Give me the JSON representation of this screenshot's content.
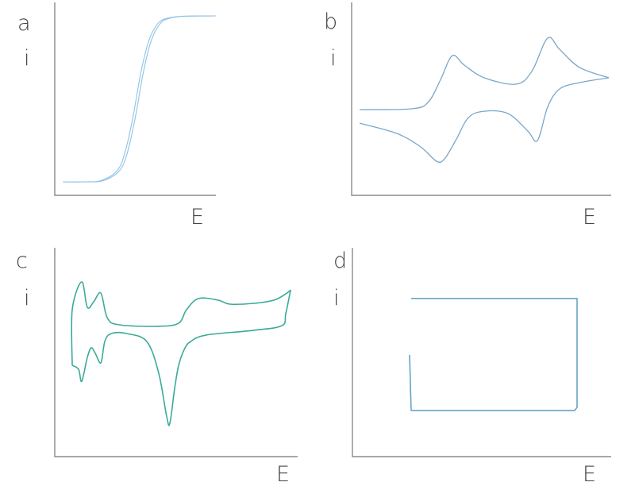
{
  "chart_data": [
    {
      "type": "line",
      "panel_label": "a",
      "xlabel": "E",
      "ylabel": "i",
      "xlim": [
        0,
        10
      ],
      "ylim": [
        0,
        10
      ],
      "grid": false,
      "color": "#8ec3e6",
      "smooth": true,
      "series": [
        {
          "values": [
            [
              0.5,
              0.7
            ],
            [
              2,
              0.7
            ],
            [
              3,
              0.76
            ],
            [
              4,
              1.26
            ],
            [
              4.5,
              2.2
            ],
            [
              5,
              4.05
            ],
            [
              5.5,
              6.4
            ],
            [
              6,
              8.05
            ],
            [
              6.5,
              8.85
            ],
            [
              7,
              9.15
            ],
            [
              8,
              9.28
            ],
            [
              10,
              9.3
            ]
          ]
        },
        {
          "values": [
            [
              10,
              9.3
            ],
            [
              7.85,
              9.28
            ],
            [
              6.85,
              9.15
            ],
            [
              6.35,
              8.85
            ],
            [
              5.85,
              8.05
            ],
            [
              5.35,
              6.4
            ],
            [
              4.85,
              4.05
            ],
            [
              4.35,
              2.2
            ],
            [
              3.85,
              1.26
            ],
            [
              2.85,
              0.76
            ],
            [
              1.85,
              0.7
            ],
            [
              0.5,
              0.7
            ]
          ]
        }
      ]
    },
    {
      "type": "line",
      "panel_label": "b",
      "xlabel": "E",
      "ylabel": "i",
      "xlim": [
        0,
        10
      ],
      "ylim": [
        0,
        10
      ],
      "grid": false,
      "color": "#7aa7c7",
      "smooth": true,
      "series": [
        {
          "values": [
            [
              0.31,
              4.44
            ],
            [
              2.35,
              4.49
            ],
            [
              2.97,
              4.86
            ],
            [
              3.43,
              6.01
            ],
            [
              3.88,
              7.24
            ],
            [
              4.34,
              6.75
            ],
            [
              5.11,
              6.09
            ],
            [
              6.33,
              5.76
            ],
            [
              6.94,
              6.42
            ],
            [
              7.55,
              8.15
            ],
            [
              8.01,
              7.57
            ],
            [
              8.78,
              6.63
            ],
            [
              9.91,
              6.09
            ]
          ]
        },
        {
          "values": [
            [
              9.91,
              6.09
            ],
            [
              8.78,
              5.84
            ],
            [
              8.01,
              5.51
            ],
            [
              7.55,
              4.57
            ],
            [
              7.16,
              2.84
            ],
            [
              6.79,
              3.33
            ],
            [
              6.02,
              4.24
            ],
            [
              5.11,
              4.36
            ],
            [
              4.5,
              4.03
            ],
            [
              4.04,
              2.92
            ],
            [
              3.58,
              1.89
            ],
            [
              3.27,
              1.77
            ],
            [
              2.66,
              2.51
            ],
            [
              1.74,
              3.21
            ],
            [
              0.31,
              3.74
            ]
          ]
        }
      ]
    },
    {
      "type": "line",
      "panel_label": "c",
      "xlabel": "E",
      "ylabel": "i",
      "xlim": [
        0,
        10
      ],
      "ylim": [
        0,
        10
      ],
      "grid": false,
      "color": "#3aaa9a",
      "smooth": true,
      "series": [
        {
          "values": [
            [
              0.72,
              4.37
            ],
            [
              0.72,
              7.03
            ],
            [
              1.11,
              8.37
            ],
            [
              1.34,
              7.15
            ],
            [
              1.6,
              7.41
            ],
            [
              1.9,
              7.83
            ],
            [
              2.16,
              6.65
            ],
            [
              2.65,
              6.31
            ],
            [
              4.28,
              6.24
            ],
            [
              5.1,
              6.39
            ],
            [
              5.42,
              7.03
            ],
            [
              5.92,
              7.57
            ],
            [
              6.73,
              7.49
            ],
            [
              7.22,
              7.3
            ],
            [
              8.2,
              7.34
            ],
            [
              9.02,
              7.49
            ],
            [
              9.51,
              7.79
            ],
            [
              9.71,
              7.98
            ]
          ]
        },
        {
          "values": [
            [
              9.71,
              7.98
            ],
            [
              9.51,
              6.84
            ],
            [
              9.35,
              6.27
            ],
            [
              8.2,
              6.05
            ],
            [
              6.24,
              5.82
            ],
            [
              5.59,
              5.51
            ],
            [
              5.33,
              5.13
            ],
            [
              5.1,
              4.37
            ],
            [
              4.93,
              3.23
            ],
            [
              4.74,
              1.6
            ],
            [
              4.61,
              1.9
            ],
            [
              4.28,
              3.99
            ],
            [
              3.79,
              5.51
            ],
            [
              2.97,
              5.89
            ],
            [
              2.32,
              5.89
            ],
            [
              2.06,
              5.51
            ],
            [
              1.9,
              4.49
            ],
            [
              1.67,
              4.94
            ],
            [
              1.5,
              5.21
            ],
            [
              1.34,
              4.75
            ],
            [
              1.11,
              3.61
            ],
            [
              0.98,
              4.18
            ],
            [
              0.72,
              4.37
            ]
          ]
        }
      ]
    },
    {
      "type": "line",
      "panel_label": "d",
      "xlabel": "E",
      "ylabel": "i",
      "xlim": [
        0,
        10
      ],
      "ylim": [
        0,
        10
      ],
      "grid": false,
      "color": "#5a9ec4",
      "smooth": false,
      "series": [
        {
          "values": [
            [
              2.21,
              4.87
            ],
            [
              2.27,
              2.21
            ],
            [
              8.59,
              2.21
            ],
            [
              8.68,
              2.36
            ],
            [
              8.68,
              7.57
            ],
            [
              2.27,
              7.57
            ]
          ]
        }
      ]
    }
  ]
}
